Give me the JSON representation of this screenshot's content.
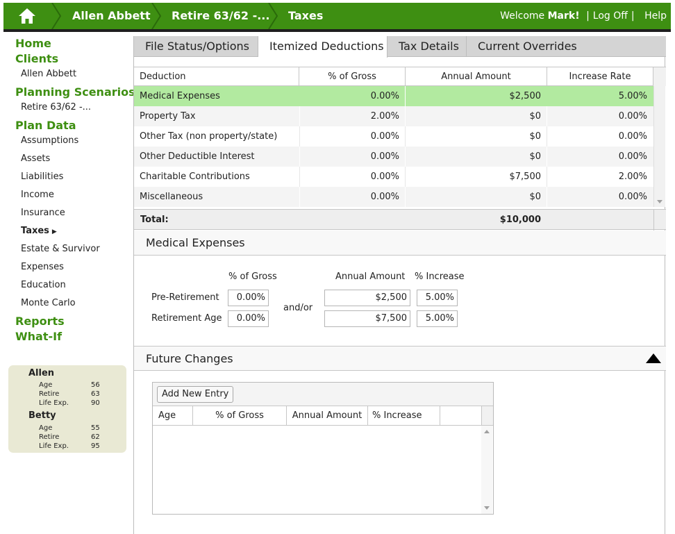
{
  "header": {
    "crumbs": [
      "Allen Abbett",
      "Retire 63/62 -...",
      "Taxes"
    ],
    "welcome_prefix": "Welcome",
    "welcome_user": "Mark!",
    "logoff_label": "Log Off",
    "help_label": "Help",
    "icons": {
      "home": "home-icon",
      "separator": "chevron-right-icon"
    },
    "colors": {
      "bar": "#3e8f12"
    }
  },
  "sidebar": {
    "home": "Home",
    "clients": "Clients",
    "client_name": "Allen Abbett",
    "planning_scenarios": "Planning Scenarios",
    "scenario_name": "Retire 63/62 -...",
    "plan_data": "Plan Data",
    "plan_items": [
      "Assumptions",
      "Assets",
      "Liabilities",
      "Income",
      "Insurance",
      "Taxes",
      "Estate & Survivor",
      "Expenses",
      "Education",
      "Monte Carlo"
    ],
    "active_item": "Taxes",
    "reports": "Reports",
    "what_if": "What-If"
  },
  "persons": [
    {
      "name": "Allen",
      "age_label": "Age",
      "age": "56",
      "retire_label": "Retire",
      "retire": "63",
      "life_label": "Life Exp.",
      "life": "90"
    },
    {
      "name": "Betty",
      "age_label": "Age",
      "age": "55",
      "retire_label": "Retire",
      "retire": "62",
      "life_label": "Life Exp.",
      "life": "95"
    }
  ],
  "tabs": [
    "File Status/Options",
    "Itemized Deductions",
    "Tax Details",
    "Current Overrides"
  ],
  "active_tab": "Itemized Deductions",
  "deductions": {
    "columns": [
      "Deduction",
      "% of Gross",
      "Annual Amount",
      "Increase Rate"
    ],
    "rows": [
      {
        "name": "Medical Expenses",
        "pct": "0.00%",
        "amount": "$2,500",
        "rate": "5.00%"
      },
      {
        "name": "Property Tax",
        "pct": "2.00%",
        "amount": "$0",
        "rate": "0.00%"
      },
      {
        "name": "Other Tax (non property/state)",
        "pct": "0.00%",
        "amount": "$0",
        "rate": "0.00%"
      },
      {
        "name": "Other Deductible Interest",
        "pct": "0.00%",
        "amount": "$0",
        "rate": "0.00%"
      },
      {
        "name": "Charitable Contributions",
        "pct": "0.00%",
        "amount": "$7,500",
        "rate": "2.00%"
      },
      {
        "name": "Miscellaneous",
        "pct": "0.00%",
        "amount": "$0",
        "rate": "0.00%"
      }
    ],
    "selected_row": "Medical Expenses",
    "total_label": "Total:",
    "total_amount": "$10,000",
    "colors": {
      "selected_row": "#b2eaa0"
    }
  },
  "detail": {
    "title": "Medical Expenses",
    "col_pct": "% of Gross",
    "col_amount": "Annual Amount",
    "col_increase": "% Increase",
    "andor": "and/or",
    "pre": {
      "label": "Pre-Retirement",
      "pct": "0.00%",
      "amount": "$2,500",
      "increase": "5.00%"
    },
    "ret": {
      "label": "Retirement Age",
      "pct": "0.00%",
      "amount": "$7,500",
      "increase": "5.00%"
    }
  },
  "future": {
    "title": "Future Changes",
    "add_label": "Add New Entry",
    "columns": [
      "Age",
      "% of Gross",
      "Annual Amount",
      "% Increase"
    ],
    "icons": {
      "collapse": "collapse-triangle-icon"
    }
  }
}
